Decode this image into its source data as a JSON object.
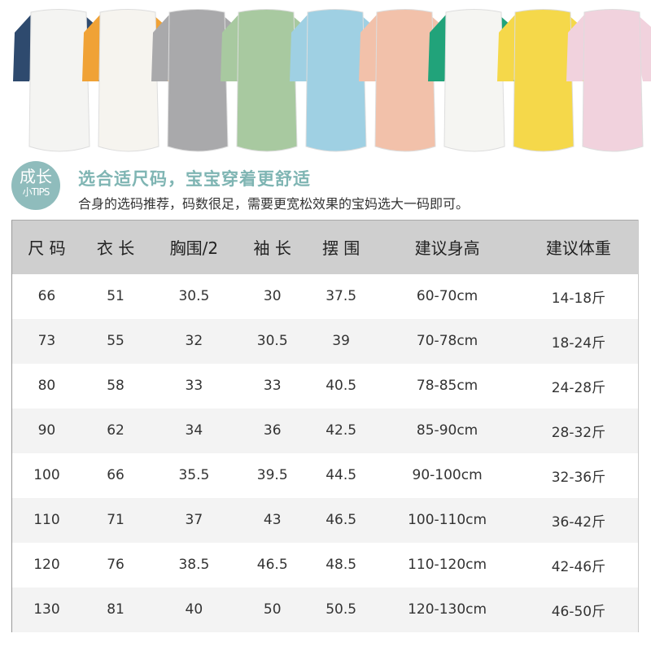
{
  "garment_colors": [
    {
      "body": "#f4f4f2",
      "sleeve": "#2e4a6e"
    },
    {
      "body": "#f6f4ef",
      "sleeve": "#f0a236"
    },
    {
      "body": "#a9a9ab",
      "sleeve": "#a9a9ab"
    },
    {
      "body": "#a8c9a0",
      "sleeve": "#a8c9a0"
    },
    {
      "body": "#9fd0e3",
      "sleeve": "#9fd0e3"
    },
    {
      "body": "#f2c1aa",
      "sleeve": "#f2c1aa"
    },
    {
      "body": "#f5f5f2",
      "sleeve": "#21a37a"
    },
    {
      "body": "#f5d84a",
      "sleeve": "#f5d84a"
    },
    {
      "body": "#f1d2dd",
      "sleeve": "#f1d2dd"
    }
  ],
  "tips": {
    "line1": "成长",
    "line2": "小TIPS",
    "color": "#8fbcbc"
  },
  "title": "选合适尺码，宝宝穿着更舒适",
  "subtitle": "合身的选码推荐，码数很足，需要更宽松效果的宝妈选大一码即可。",
  "table": {
    "headers": [
      "尺 码",
      "衣 长",
      "胸围/2",
      "袖 长",
      "摆 围",
      "建议身高",
      "建议体重"
    ],
    "rows": [
      [
        "66",
        "51",
        "30.5",
        "30",
        "37.5",
        "60-70cm",
        "14-18斤"
      ],
      [
        "73",
        "55",
        "32",
        "30.5",
        "39",
        "70-78cm",
        "18-24斤"
      ],
      [
        "80",
        "58",
        "33",
        "33",
        "40.5",
        "78-85cm",
        "24-28斤"
      ],
      [
        "90",
        "62",
        "34",
        "36",
        "42.5",
        "85-90cm",
        "28-32斤"
      ],
      [
        "100",
        "66",
        "35.5",
        "39.5",
        "44.5",
        "90-100cm",
        "32-36斤"
      ],
      [
        "110",
        "71",
        "37",
        "43",
        "46.5",
        "100-110cm",
        "36-42斤"
      ],
      [
        "120",
        "76",
        "38.5",
        "46.5",
        "48.5",
        "110-120cm",
        "42-46斤"
      ],
      [
        "130",
        "81",
        "40",
        "50",
        "50.5",
        "120-130cm",
        "46-50斤"
      ]
    ]
  }
}
